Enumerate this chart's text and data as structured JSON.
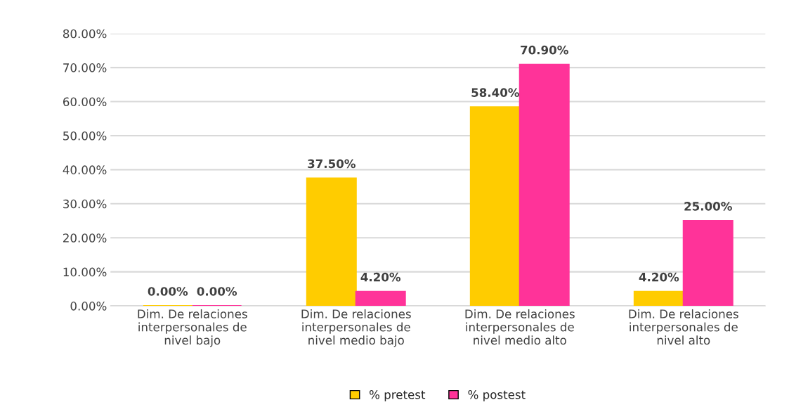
{
  "chart_data": {
    "type": "bar",
    "categories": [
      "Dim. De relaciones\ninterpersonales de\nnivel bajo",
      "Dim. De relaciones\ninterpersonales de\nnivel medio bajo",
      "Dim. De relaciones\ninterpersonales de\nnivel medio alto",
      "Dim. De relaciones\ninterpersonales de\nnivel alto"
    ],
    "series": [
      {
        "name": "% pretest",
        "color": "#ffcc00",
        "values": [
          0,
          37.5,
          58.4,
          4.2
        ],
        "value_labels": [
          "0.00%",
          "37.50%",
          "58.40%",
          "4.20%"
        ]
      },
      {
        "name": "% postest",
        "color": "#ff3399",
        "values": [
          0,
          4.2,
          70.9,
          25.0
        ],
        "value_labels": [
          "0.00%",
          "4.20%",
          "70.90%",
          "25.00%"
        ]
      }
    ],
    "ylim": [
      0,
      80
    ],
    "yticks": [
      {
        "value": 0,
        "label": "0.00%"
      },
      {
        "value": 10,
        "label": "10.00%"
      },
      {
        "value": 20,
        "label": "20.00%"
      },
      {
        "value": 30,
        "label": "30.00%"
      },
      {
        "value": 40,
        "label": "40.00%"
      },
      {
        "value": 50,
        "label": "50.00%"
      },
      {
        "value": 60,
        "label": "60.00%"
      },
      {
        "value": 70,
        "label": "70.00%"
      },
      {
        "value": 80,
        "label": "80.00%"
      }
    ],
    "grid": "y",
    "legend": "bottom"
  }
}
